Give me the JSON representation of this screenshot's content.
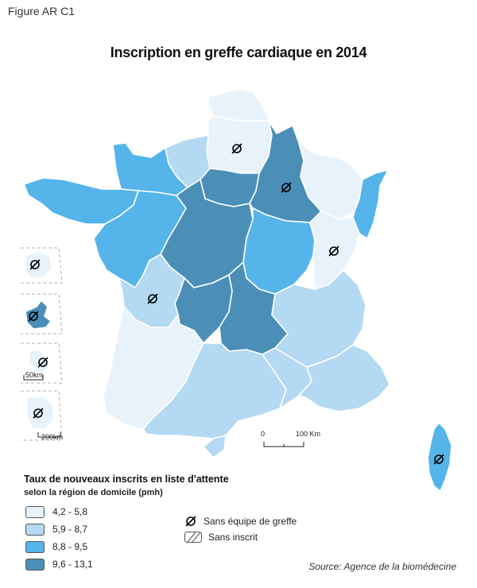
{
  "figure_label": "Figure AR C1",
  "title": "Inscription en greffe cardiaque en 2014",
  "legend": {
    "title": "Taux de nouveaux inscrits en liste d'attente",
    "subtitle": "selon la région de domicile (pmh)",
    "classes": [
      {
        "label": "4,2 - 5,8",
        "color": "#e8f2fb"
      },
      {
        "label": "5,9 - 8,7",
        "color": "#b4d9f2"
      },
      {
        "label": "8,8 - 9,5",
        "color": "#55b4ea"
      },
      {
        "label": "9,6 - 13,1",
        "color": "#4b8fb8"
      }
    ],
    "no_team_label": "Sans équipe de greffe",
    "no_registered_label": "Sans inscrit"
  },
  "scale_bars": {
    "main": {
      "zero": "0",
      "end": "100 Km"
    },
    "dom_small": "50km",
    "dom_large": "200km"
  },
  "source": "Source: Agence de la biomédecine",
  "map": {
    "no_team_icon": "empty-set-icon",
    "regions_without_team": [
      "Picardie",
      "Champagne-Ardenne",
      "Franche-Comté",
      "Limousin",
      "Corse",
      "La Réunion",
      "Guadeloupe",
      "Martinique",
      "Guyane"
    ]
  }
}
